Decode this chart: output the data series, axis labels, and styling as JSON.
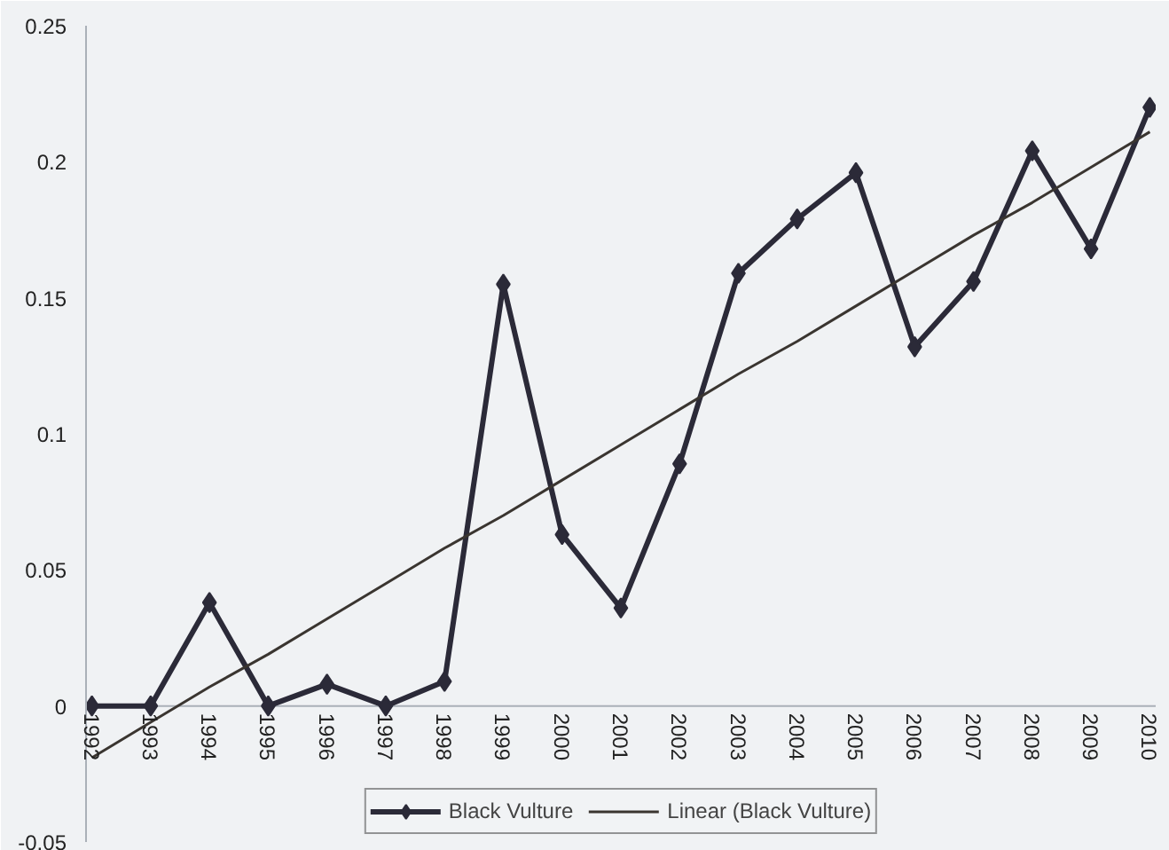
{
  "chart_data": {
    "type": "line",
    "categories": [
      "1992",
      "1993",
      "1994",
      "1995",
      "1996",
      "1997",
      "1998",
      "1999",
      "2000",
      "2001",
      "2002",
      "2003",
      "2004",
      "2005",
      "2006",
      "2007",
      "2008",
      "2009",
      "2010"
    ],
    "series": [
      {
        "name": "Black Vulture",
        "color": "#2b2a38",
        "marker": "diamond",
        "values": [
          0,
          0,
          0.038,
          0,
          0.008,
          0,
          0.009,
          0.155,
          0.063,
          0.036,
          0.089,
          0.159,
          0.179,
          0.196,
          0.132,
          0.156,
          0.204,
          0.168,
          0.22
        ]
      },
      {
        "name": "Linear (Black Vulture)",
        "color": "#3a3530",
        "type": "line",
        "marker": "none",
        "values": [
          -0.019,
          -0.006,
          0.007,
          0.019,
          0.032,
          0.045,
          0.058,
          0.07,
          0.083,
          0.096,
          0.109,
          0.122,
          0.134,
          0.147,
          0.16,
          0.173,
          0.185,
          0.198,
          0.211
        ]
      }
    ],
    "ylim": [
      -0.05,
      0.25
    ],
    "yticks": [
      -0.05,
      0,
      0.05,
      0.1,
      0.15,
      0.2,
      0.25
    ],
    "grid": false,
    "legend": "bottom"
  }
}
